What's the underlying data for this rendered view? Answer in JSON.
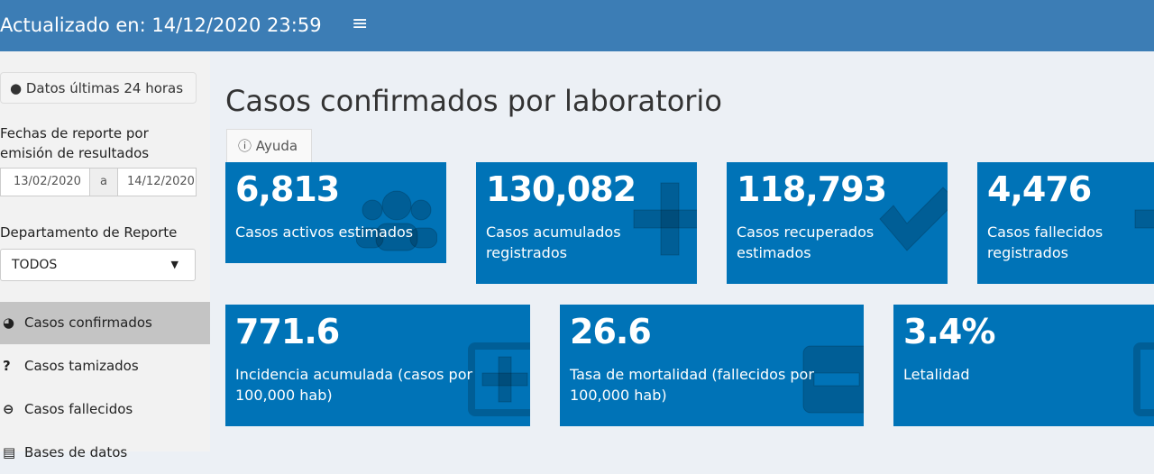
{
  "header": {
    "title": "Actualizado en: 14/12/2020 23:59",
    "menu_icon": "≡"
  },
  "sidebar": {
    "button": "Datos últimas 24 horas",
    "dates_label": "Fechas de reporte por emisión de resultados",
    "date_from": "13/02/2020",
    "date_sep": "a",
    "date_to": "14/12/2020",
    "dept_label": "Departamento de Reporte",
    "dept_value": "TODOS",
    "menu": [
      "Casos confirmados",
      "Casos tamizados",
      "Casos fallecidos",
      "Bases de datos"
    ]
  },
  "main": {
    "title": "Casos confirmados por laboratorio",
    "tab": "Ayuda",
    "boxes": [
      {
        "value": "6,813",
        "label": "Casos activos estimados"
      },
      {
        "value": "130,082",
        "label": "Casos acumulados registrados"
      },
      {
        "value": "118,793",
        "label": "Casos recuperados estimados"
      },
      {
        "value": "4,476",
        "label": "Casos fallecidos registrados"
      },
      {
        "value": "771.6",
        "label": "Incidencia acumulada (casos por 100,000 hab)"
      },
      {
        "value": "26.6",
        "label": "Tasa de mortalidad (fallecidos por 100,000 hab)"
      },
      {
        "value": "3.4%",
        "label": "Letalidad"
      }
    ]
  }
}
